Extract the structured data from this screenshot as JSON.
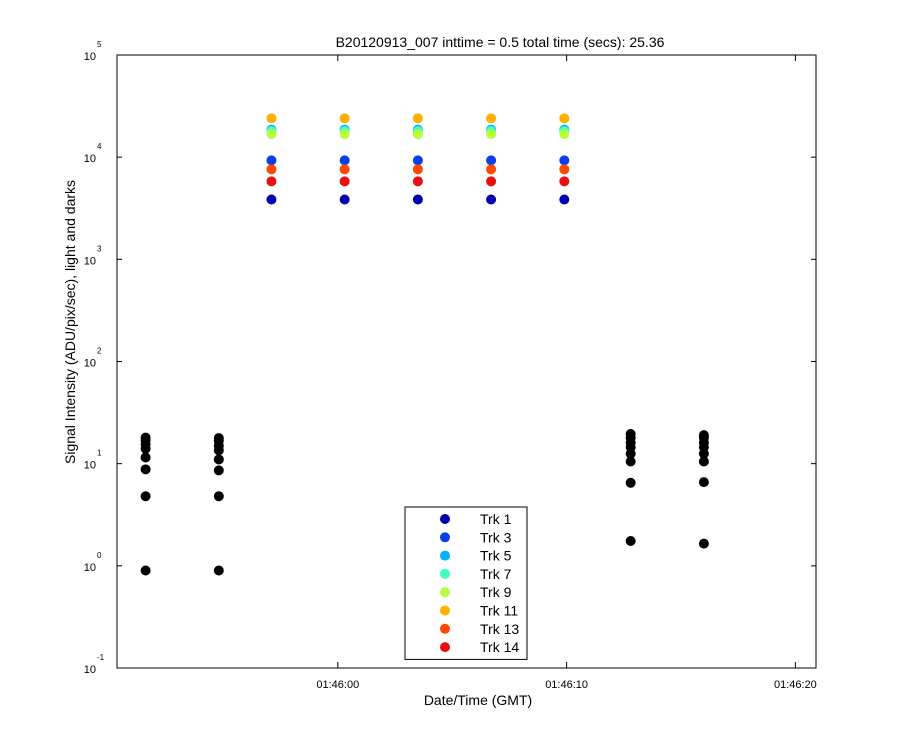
{
  "chart_data": {
    "type": "scatter",
    "title": "B20120913_007 inttime = 0.5 total time (secs): 25.36",
    "xlabel": "Date/Time (GMT)",
    "ylabel": "Signal Intensity (ADU/pix/sec), light and darks",
    "y_scale": "log",
    "ylim_exponents": [
      -1,
      5
    ],
    "y_tick_labels": [
      {
        "base": "10",
        "exp": "-1"
      },
      {
        "base": "10",
        "exp": "0"
      },
      {
        "base": "10",
        "exp": "1"
      },
      {
        "base": "10",
        "exp": "2"
      },
      {
        "base": "10",
        "exp": "3"
      },
      {
        "base": "10",
        "exp": "4"
      },
      {
        "base": "10",
        "exp": "5"
      }
    ],
    "xlim_seconds": [
      51.35,
      81.9
    ],
    "x_tick_values": [
      61,
      71,
      81
    ],
    "x_tick_labels": [
      "01:46:00",
      "01:46:10",
      "01:46:20"
    ],
    "light_x_seconds": [
      58.1,
      61.3,
      64.5,
      67.7,
      70.9
    ],
    "dark_x_seconds": [
      52.6,
      55.8,
      73.8,
      77.0
    ],
    "grid": false,
    "legend_position": "bottom-center",
    "series": [
      {
        "name": "Trk 1",
        "color": "#0000b0",
        "light_values": [
          3850,
          3850,
          3850,
          3850,
          3850
        ]
      },
      {
        "name": "Trk 3",
        "color": "#0a3ee8",
        "light_values": [
          9300,
          9300,
          9300,
          9300,
          9300
        ]
      },
      {
        "name": "Trk 5",
        "color": "#00b2ff",
        "light_values": [
          18600,
          18600,
          18600,
          18600,
          18600
        ]
      },
      {
        "name": "Trk 7",
        "color": "#40ffbf",
        "light_values": [
          18000,
          18000,
          18000,
          18000,
          18000
        ]
      },
      {
        "name": "Trk 9",
        "color": "#b5ff40",
        "light_values": [
          16800,
          16800,
          16800,
          16800,
          16800
        ]
      },
      {
        "name": "Trk 11",
        "color": "#ffb000",
        "light_values": [
          24000,
          24000,
          24000,
          24000,
          24000
        ]
      },
      {
        "name": "Trk 13",
        "color": "#ff4800",
        "light_values": [
          7600,
          7600,
          7600,
          7600,
          7600
        ]
      },
      {
        "name": "Trk 14",
        "color": "#e81010",
        "light_values": [
          5800,
          5800,
          5800,
          5800,
          5800
        ]
      }
    ],
    "darks": {
      "color": "#000000",
      "values": [
        [
          0.9,
          4.8,
          8.8,
          11.5,
          14.0,
          15.5,
          17.0,
          18.0
        ],
        [
          0.9,
          4.8,
          8.6,
          11.0,
          13.5,
          15.0,
          16.8,
          17.8
        ],
        [
          1.75,
          6.5,
          10.5,
          12.5,
          14.5,
          16.0,
          18.0,
          19.5
        ],
        [
          1.65,
          6.6,
          10.5,
          12.5,
          14.5,
          16.0,
          18.0,
          19.0
        ]
      ]
    }
  }
}
